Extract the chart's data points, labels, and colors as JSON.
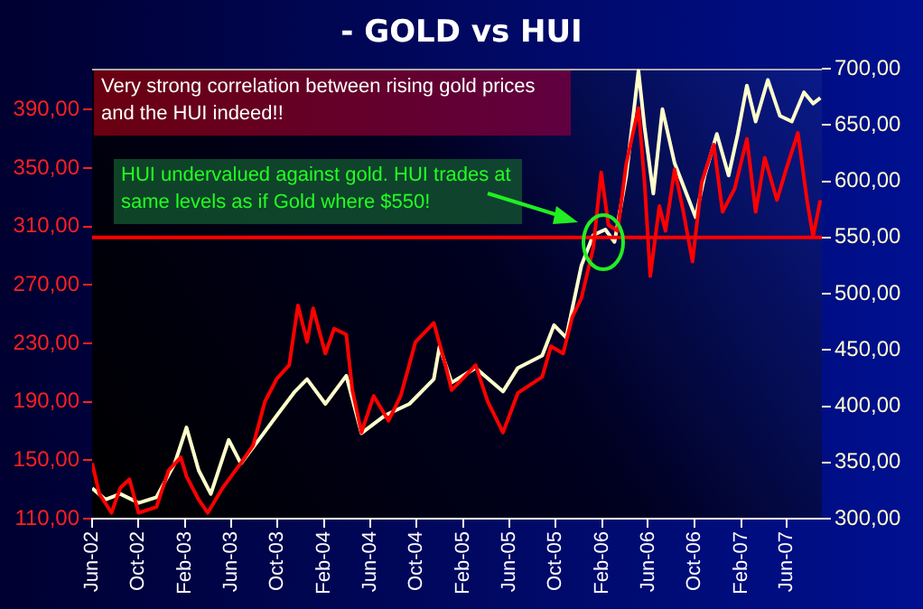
{
  "chart_data": {
    "type": "line",
    "title": "- GOLD vs HUI",
    "annotations": [
      "Very strong correlation between rising gold prices and the HUI indeed!!",
      "HUI undervalued against gold. HUI trades at same levels as if Gold where $550!"
    ],
    "xlim": [
      "2002-06",
      "2007-09"
    ],
    "xticks": [
      {
        "value": "2002-06",
        "label": "Jun-02"
      },
      {
        "value": "2002-10",
        "label": "Oct-02"
      },
      {
        "value": "2003-02",
        "label": "Feb-03"
      },
      {
        "value": "2003-06",
        "label": "Jun-03"
      },
      {
        "value": "2003-10",
        "label": "Oct-03"
      },
      {
        "value": "2004-02",
        "label": "Feb-04"
      },
      {
        "value": "2004-06",
        "label": "Jun-04"
      },
      {
        "value": "2004-10",
        "label": "Oct-04"
      },
      {
        "value": "2005-02",
        "label": "Feb-05"
      },
      {
        "value": "2005-06",
        "label": "Jun-05"
      },
      {
        "value": "2005-10",
        "label": "Oct-05"
      },
      {
        "value": "2006-02",
        "label": "Feb-06"
      },
      {
        "value": "2006-06",
        "label": "Jun-06"
      },
      {
        "value": "2006-10",
        "label": "Oct-06"
      },
      {
        "value": "2007-02",
        "label": "Feb-07"
      },
      {
        "value": "2007-06",
        "label": "Jun-07"
      }
    ],
    "ylim": [
      110,
      418
    ],
    "yticks": [
      {
        "value": 110,
        "label": "110,00"
      },
      {
        "value": 150,
        "label": "150,00"
      },
      {
        "value": 190,
        "label": "190,00"
      },
      {
        "value": 230,
        "label": "230,00"
      },
      {
        "value": 270,
        "label": "270,00"
      },
      {
        "value": 310,
        "label": "310,00"
      },
      {
        "value": 350,
        "label": "350,00"
      },
      {
        "value": 390,
        "label": "390,00"
      }
    ],
    "y2lim": [
      300,
      700
    ],
    "y2ticks": [
      {
        "value": 300,
        "label": "300,00"
      },
      {
        "value": 350,
        "label": "350,00"
      },
      {
        "value": 400,
        "label": "400,00"
      },
      {
        "value": 450,
        "label": "450,00"
      },
      {
        "value": 500,
        "label": "500,00"
      },
      {
        "value": 550,
        "label": "550,00"
      },
      {
        "value": 600,
        "label": "600,00"
      },
      {
        "value": 650,
        "label": "650,00"
      },
      {
        "value": 700,
        "label": "700,00"
      }
    ],
    "ref_lines": [
      {
        "axis": "y2",
        "value": 550,
        "color": "#ff0000"
      }
    ],
    "series": [
      {
        "color": "#ff0000",
        "axis": "y",
        "x": [
          "2002-06-01",
          "2002-06-20",
          "2002-07-22",
          "2002-08-14",
          "2002-09-07",
          "2002-10-01",
          "2002-11-17",
          "2002-12-19",
          "2003-01-20",
          "2003-02-04",
          "2003-03-08",
          "2003-04-01",
          "2003-05-10",
          "2003-06-27",
          "2003-07-29",
          "2003-08-29",
          "2003-09-30",
          "2003-11-01",
          "2003-11-24",
          "2003-12-18",
          "2004-01-03",
          "2004-02-04",
          "2004-02-27",
          "2004-03-30",
          "2004-04-15",
          "2004-05-09",
          "2004-06-10",
          "2004-07-19",
          "2004-08-20",
          "2004-09-28",
          "2004-11-15",
          "2004-12-16",
          "2005-01-01",
          "2005-03-05",
          "2005-04-06",
          "2005-05-16",
          "2005-06-24",
          "2005-08-27",
          "2005-09-19",
          "2005-10-21",
          "2005-11-14",
          "2005-12-08",
          "2006-01-08",
          "2006-01-29",
          "2006-02-17",
          "2006-03-13",
          "2006-04-05",
          "2006-05-07",
          "2006-05-23",
          "2006-06-07",
          "2006-07-01",
          "2006-07-17",
          "2006-08-10",
          "2006-09-02",
          "2006-09-26",
          "2006-10-20",
          "2006-11-21",
          "2006-12-14",
          "2007-01-15",
          "2007-02-16",
          "2007-03-11",
          "2007-04-04",
          "2007-05-06",
          "2007-05-30",
          "2007-06-30",
          "2007-07-24",
          "2007-08-09",
          "2007-08-28"
        ],
        "values": [
          148,
          127,
          114,
          131,
          137,
          114,
          118,
          143,
          152,
          139,
          123,
          114,
          131,
          148,
          160,
          190,
          206,
          215,
          256,
          231,
          254,
          223,
          240,
          236,
          198,
          169,
          194,
          177,
          194,
          231,
          244,
          215,
          198,
          215,
          190,
          169,
          196,
          207,
          228,
          223,
          248,
          261,
          295,
          347,
          311,
          307,
          353,
          391,
          340,
          276,
          324,
          307,
          349,
          320,
          286,
          340,
          366,
          320,
          336,
          370,
          320,
          357,
          328,
          349,
          374,
          328,
          303,
          328
        ]
      },
      {
        "color": "#ffffcc",
        "axis": "y2",
        "x": [
          "2002-06-01",
          "2002-07-06",
          "2002-08-14",
          "2002-10-01",
          "2002-11-17",
          "2003-01-04",
          "2003-02-04",
          "2003-03-08",
          "2003-04-09",
          "2003-05-26",
          "2003-06-27",
          "2003-08-13",
          "2003-09-30",
          "2003-11-16",
          "2003-12-18",
          "2004-02-04",
          "2004-03-30",
          "2004-05-09",
          "2004-07-11",
          "2004-09-12",
          "2004-11-15",
          "2004-11-30",
          "2005-01-01",
          "2005-03-05",
          "2005-05-16",
          "2005-06-24",
          "2005-08-27",
          "2005-09-27",
          "2005-10-29",
          "2005-12-08",
          "2006-01-08",
          "2006-02-09",
          "2006-03-05",
          "2006-04-05",
          "2006-05-07",
          "2006-05-23",
          "2006-06-15",
          "2006-07-09",
          "2006-08-10",
          "2006-09-10",
          "2006-10-04",
          "2006-10-28",
          "2006-11-29",
          "2006-12-30",
          "2007-01-23",
          "2007-02-16",
          "2007-03-11",
          "2007-04-12",
          "2007-05-14",
          "2007-06-14",
          "2007-07-16",
          "2007-08-09",
          "2007-08-28"
        ],
        "values": [
          327,
          317,
          322,
          314,
          319,
          349,
          381,
          343,
          322,
          370,
          349,
          370,
          392,
          413,
          424,
          402,
          427,
          376,
          392,
          402,
          424,
          453,
          421,
          434,
          413,
          434,
          445,
          472,
          461,
          525,
          552,
          557,
          546,
          605,
          698,
          648,
          589,
          664,
          616,
          589,
          568,
          605,
          642,
          605,
          642,
          685,
          653,
          690,
          658,
          653,
          679,
          669,
          674
        ]
      }
    ]
  }
}
